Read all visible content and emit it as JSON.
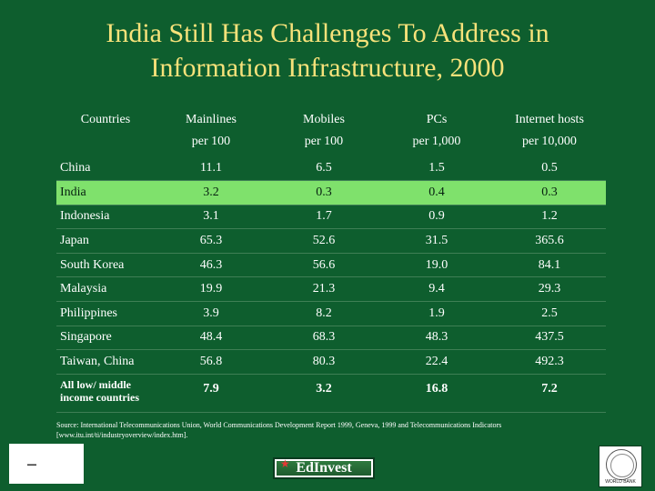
{
  "title": {
    "line1": "India Still Has Challenges To Address in",
    "line2": "Information Infrastructure, 2000"
  },
  "table": {
    "headers": [
      {
        "line1": "Countries",
        "line2": ""
      },
      {
        "line1": "Mainlines",
        "line2": "per 100"
      },
      {
        "line1": "Mobiles",
        "line2": "per 100"
      },
      {
        "line1": "PCs",
        "line2": "per 1,000"
      },
      {
        "line1": "Internet hosts",
        "line2": "per 10,000"
      }
    ],
    "rows": [
      {
        "country": "China",
        "values": [
          "11.1",
          "6.5",
          "1.5",
          "0.5"
        ]
      },
      {
        "country": "India",
        "values": [
          "3.2",
          "0.3",
          "0.4",
          "0.3"
        ]
      },
      {
        "country": "Indonesia",
        "values": [
          "3.1",
          "1.7",
          "0.9",
          "1.2"
        ]
      },
      {
        "country": "Japan",
        "values": [
          "65.3",
          "52.6",
          "31.5",
          "365.6"
        ]
      },
      {
        "country": "South Korea",
        "values": [
          "46.3",
          "56.6",
          "19.0",
          "84.1"
        ]
      },
      {
        "country": "Malaysia",
        "values": [
          "19.9",
          "21.3",
          "9.4",
          "29.3"
        ]
      },
      {
        "country": "Philippines",
        "values": [
          "3.9",
          "8.2",
          "1.9",
          "2.5"
        ]
      },
      {
        "country": "Singapore",
        "values": [
          "48.4",
          "68.3",
          "48.3",
          "437.5"
        ]
      },
      {
        "country": "Taiwan, China",
        "values": [
          "56.8",
          "80.3",
          "22.4",
          "492.3"
        ]
      },
      {
        "country_line1": "All low/ middle",
        "country_line2": "income countries",
        "values": [
          "7.9",
          "3.2",
          "16.8",
          "7.2"
        ]
      }
    ],
    "highlight_color": "#7fe16c"
  },
  "source": {
    "line1": "Source: International Telecommunications Union, World Communications Development Report 1999, Geneva, 1999 and Telecommunications Indicators",
    "line2": "[www.itu.int/ti/industryoverview/index.htm]."
  },
  "logos": {
    "edinvest": "EdInvest",
    "worldbank": "WORLD BANK"
  },
  "colors": {
    "background": "#0e5e2e",
    "title": "#f7e27a"
  }
}
